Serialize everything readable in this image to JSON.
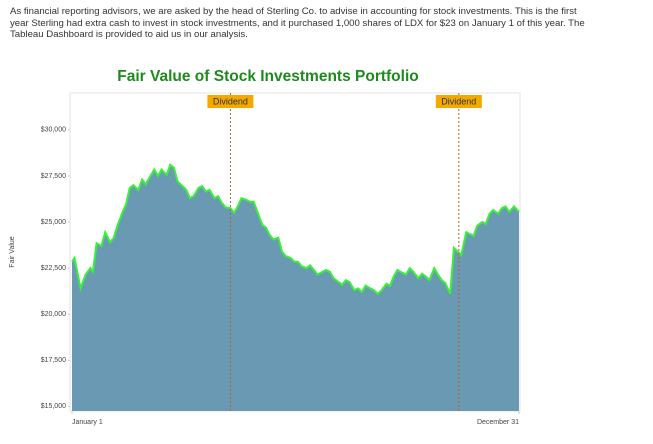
{
  "intro": {
    "lines": [
      "As financial reporting advisors, we are asked by the head of Sterling Co. to advise in accounting for stock investments. This is the first",
      "year Sterling had extra cash to invest in stock investments, and it purchased 1,000 shares of LDX for $23 on January 1 of this year. The",
      "Tableau Dashboard is provided to aid us in our analysis."
    ]
  },
  "chart_data": {
    "type": "area",
    "title": "Fair Value of Stock Investments Portfolio",
    "y_label": "Fair Value",
    "color": "#6a9ab3",
    "line_color": "#39f03a",
    "x": [
      1,
      3,
      8,
      12,
      16,
      18,
      21,
      25,
      28,
      32,
      35,
      38,
      42,
      45,
      48,
      51,
      55,
      58,
      61,
      64,
      68,
      71,
      74,
      78,
      81,
      84,
      87,
      91,
      94,
      97,
      100,
      104,
      107,
      110,
      113,
      117,
      120,
      123,
      126,
      130,
      133,
      136,
      139,
      143,
      146,
      149,
      152,
      156,
      159,
      162,
      165,
      169,
      172,
      175,
      179,
      182,
      185,
      188,
      192,
      195,
      198,
      201,
      205,
      208,
      211,
      214,
      218,
      221,
      224,
      227,
      231,
      234,
      237,
      240,
      244,
      247,
      250,
      253,
      257,
      260,
      263,
      266,
      270,
      273,
      276,
      279,
      283,
      286,
      289,
      292,
      296,
      299,
      302,
      305,
      309,
      312,
      315,
      318,
      322,
      325,
      328,
      331,
      335,
      338,
      341,
      344,
      348,
      351,
      354,
      357,
      361,
      365
    ],
    "values": [
      22850,
      23050,
      21400,
      22150,
      22500,
      22300,
      23850,
      23700,
      24450,
      23900,
      24150,
      24800,
      25500,
      25950,
      26850,
      27000,
      26750,
      27300,
      27050,
      27400,
      27850,
      27500,
      27850,
      27550,
      28100,
      27950,
      27200,
      26950,
      26750,
      26300,
      26400,
      26850,
      26950,
      26650,
      26750,
      26300,
      26400,
      26050,
      25800,
      25750,
      25500,
      25850,
      26300,
      26200,
      26100,
      26100,
      25550,
      24850,
      24700,
      24300,
      24050,
      24150,
      23400,
      23150,
      23050,
      22850,
      22850,
      22600,
      22500,
      22650,
      22400,
      22150,
      22300,
      22400,
      22300,
      21950,
      21750,
      21600,
      21850,
      21750,
      21300,
      21400,
      21200,
      21550,
      21400,
      21300,
      21100,
      21300,
      21650,
      21550,
      22050,
      22400,
      22250,
      22150,
      22500,
      22300,
      21950,
      22200,
      22050,
      21850,
      22500,
      22150,
      21850,
      21700,
      21100,
      23600,
      23400,
      23200,
      24450,
      24350,
      24250,
      24800,
      25000,
      24900,
      25450,
      25650,
      25450,
      25750,
      25850,
      25550,
      25850,
      25550
    ],
    "xlim": [
      1,
      365
    ],
    "xticks": [
      {
        "value": 1,
        "label": "January 1"
      },
      {
        "value": 365,
        "label": "December 31"
      }
    ],
    "ylim": [
      14750,
      32000
    ],
    "yticks": [
      {
        "value": 15000,
        "label": "$15,000"
      },
      {
        "value": 17500,
        "label": "$17,500"
      },
      {
        "value": 20000,
        "label": "$20,000"
      },
      {
        "value": 22500,
        "label": "$22,500"
      },
      {
        "value": 25000,
        "label": "$25,000"
      },
      {
        "value": 27500,
        "label": "$27,500"
      },
      {
        "value": 30000,
        "label": "$30,000"
      }
    ],
    "annotations": [
      {
        "label": "Dividend",
        "x": 130
      },
      {
        "label": "Dividend",
        "x": 316
      }
    ]
  }
}
